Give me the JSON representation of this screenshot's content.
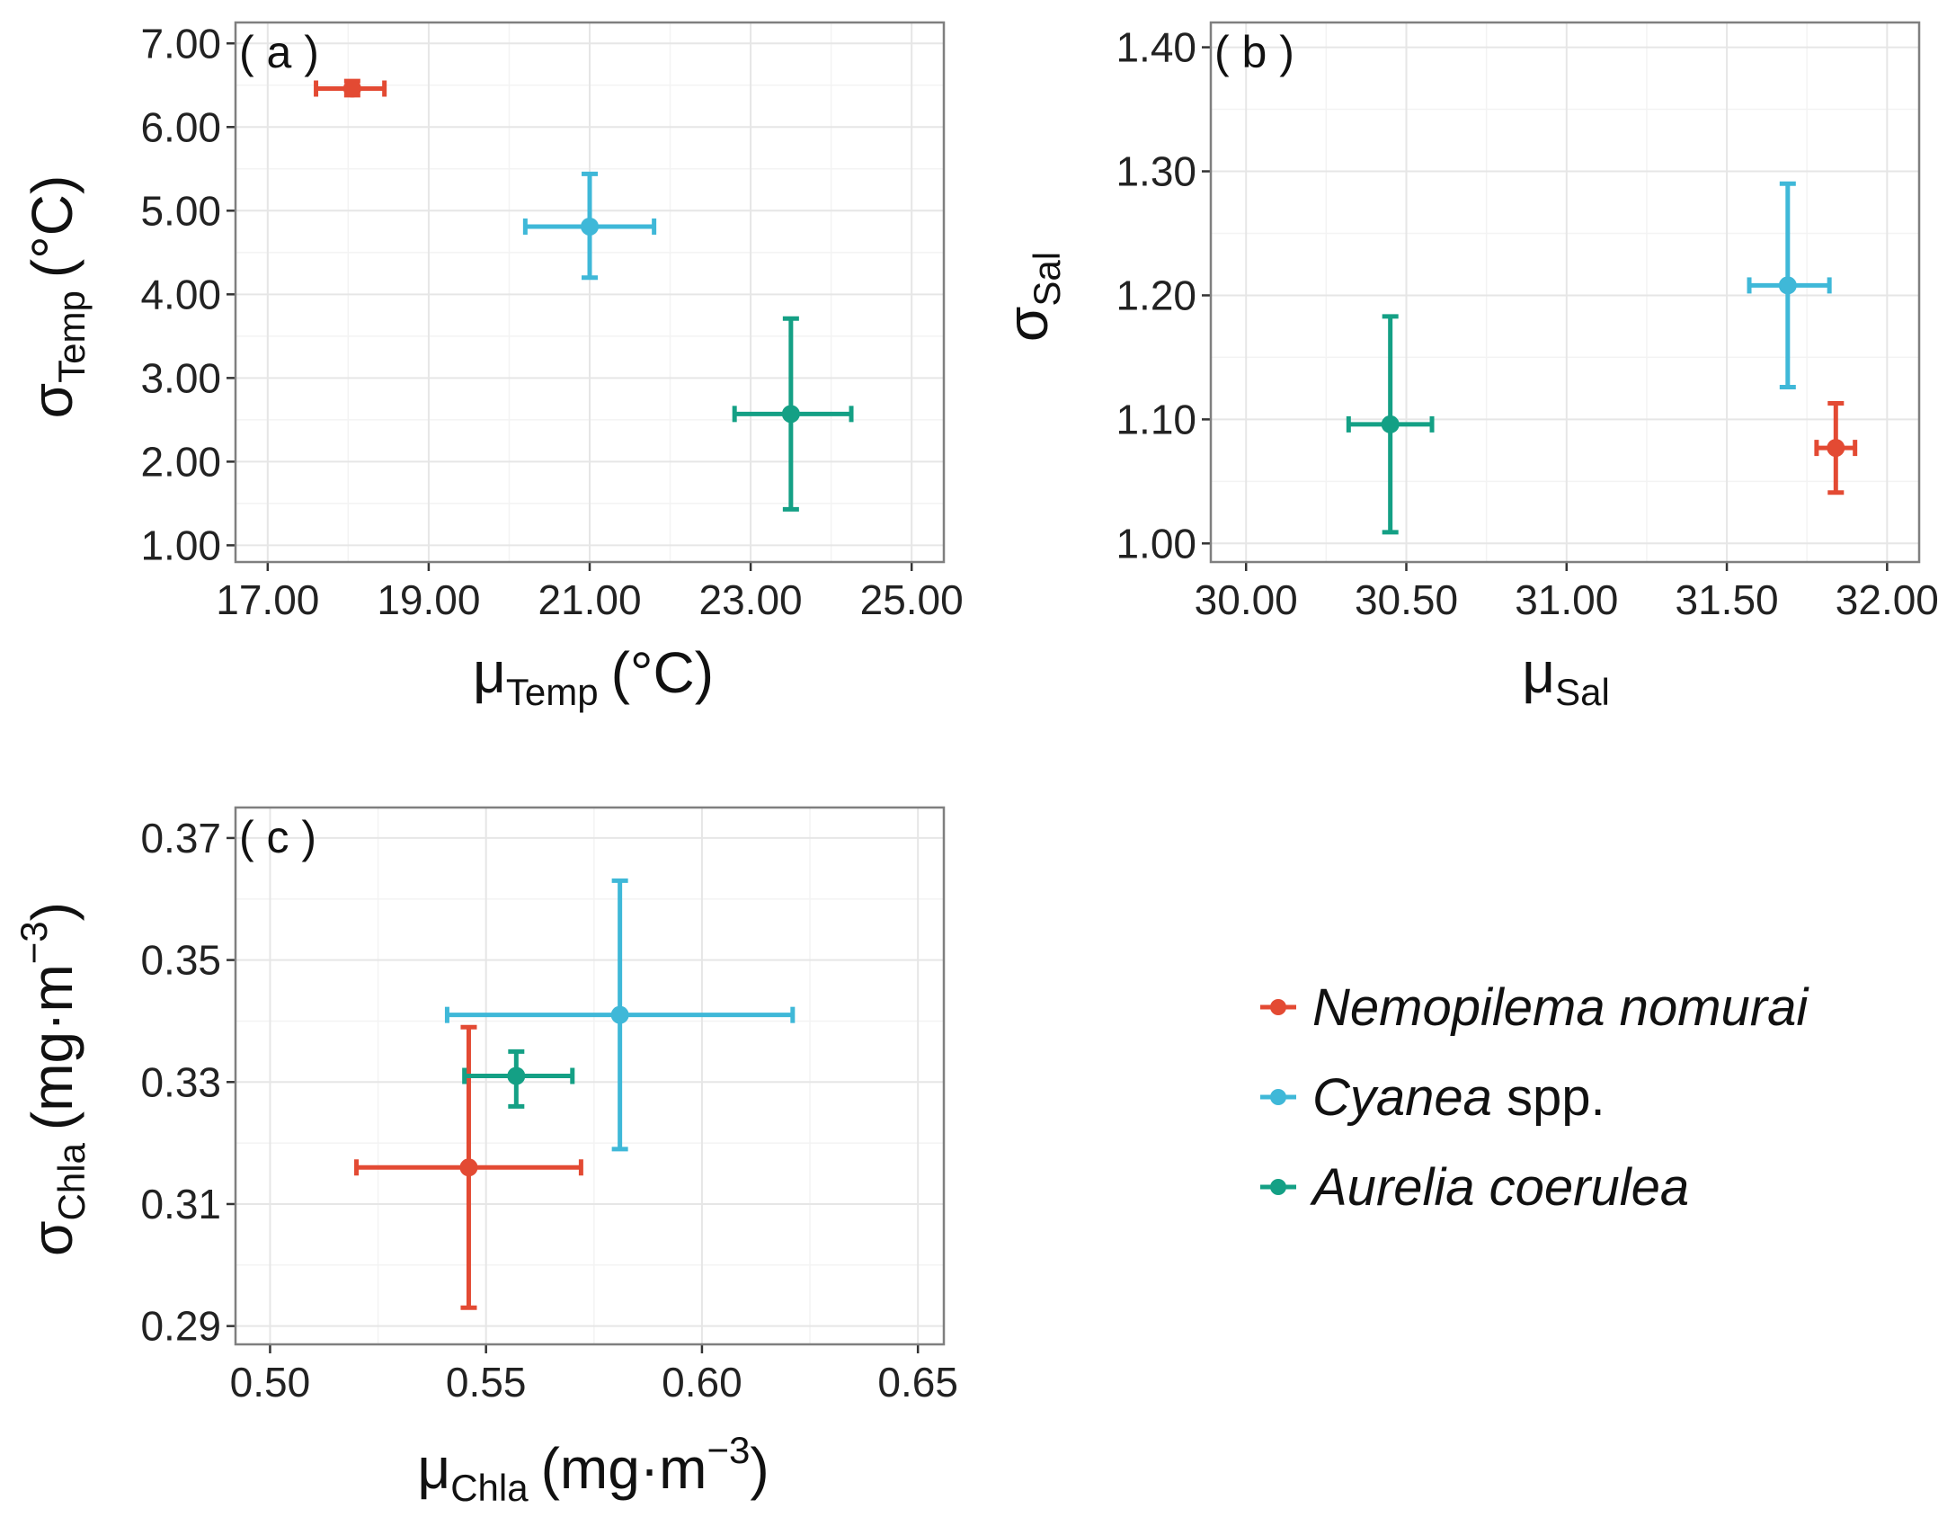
{
  "colors": {
    "nomurai": "#e34a33",
    "cyanea": "#3fb8d8",
    "aurelia": "#14a085"
  },
  "legend": {
    "items": [
      {
        "series": "nomurai",
        "label_parts": [
          {
            "text": "Nemopilema nomurai",
            "italic": true
          }
        ]
      },
      {
        "series": "cyanea",
        "label_parts": [
          {
            "text": "Cyanea",
            "italic": true
          },
          {
            "text": " spp.",
            "italic": false
          }
        ]
      },
      {
        "series": "aurelia",
        "label_parts": [
          {
            "text": "Aurelia coerulea",
            "italic": true
          }
        ]
      }
    ]
  },
  "chart_data": [
    {
      "id": "a",
      "panel_label": "( a )",
      "type": "scatter",
      "xlabel": {
        "symbol": "μ",
        "sub": "Temp",
        "unit": "(°C)",
        "sup": ""
      },
      "ylabel": {
        "symbol": "σ",
        "sub": "Temp",
        "unit": "(°C)",
        "sup": ""
      },
      "xlim": [
        16.6,
        25.4
      ],
      "ylim": [
        0.8,
        7.25
      ],
      "xticks": [
        17,
        19,
        21,
        23,
        25
      ],
      "yticks": [
        1,
        2,
        3,
        4,
        5,
        6,
        7
      ],
      "tick_decimals": 2,
      "points": [
        {
          "series": "nomurai",
          "x": 18.05,
          "y": 6.46,
          "xerr": [
            17.6,
            18.45
          ],
          "yerr": [
            6.38,
            6.55
          ]
        },
        {
          "series": "cyanea",
          "x": 21.0,
          "y": 4.81,
          "xerr": [
            20.2,
            21.8
          ],
          "yerr": [
            4.2,
            5.44
          ]
        },
        {
          "series": "aurelia",
          "x": 23.5,
          "y": 2.57,
          "xerr": [
            22.8,
            24.25
          ],
          "yerr": [
            1.43,
            3.71
          ]
        }
      ]
    },
    {
      "id": "b",
      "panel_label": "( b )",
      "type": "scatter",
      "xlabel": {
        "symbol": "μ",
        "sub": "Sal",
        "unit": "",
        "sup": ""
      },
      "ylabel": {
        "symbol": "σ",
        "sub": "Sal",
        "unit": "",
        "sup": ""
      },
      "xlim": [
        29.89,
        32.1
      ],
      "ylim": [
        0.985,
        1.42
      ],
      "xticks": [
        30,
        30.5,
        31,
        31.5,
        32
      ],
      "yticks": [
        1.0,
        1.1,
        1.2,
        1.3,
        1.4
      ],
      "tick_decimals": 2,
      "points": [
        {
          "series": "nomurai",
          "x": 31.84,
          "y": 1.077,
          "xerr": [
            31.78,
            31.9
          ],
          "yerr": [
            1.041,
            1.113
          ]
        },
        {
          "series": "cyanea",
          "x": 31.69,
          "y": 1.208,
          "xerr": [
            31.57,
            31.82
          ],
          "yerr": [
            1.126,
            1.29
          ]
        },
        {
          "series": "aurelia",
          "x": 30.45,
          "y": 1.096,
          "xerr": [
            30.32,
            30.58
          ],
          "yerr": [
            1.009,
            1.183
          ]
        }
      ]
    },
    {
      "id": "c",
      "panel_label": "( c )",
      "type": "scatter",
      "xlabel": {
        "symbol": "μ",
        "sub": "Chla",
        "unit": "(mg·m",
        "sup": "−3",
        "close": ")"
      },
      "ylabel": {
        "symbol": "σ",
        "sub": "Chla",
        "unit": "(mg·m",
        "sup": "−3",
        "close": ")"
      },
      "xlim": [
        0.492,
        0.656
      ],
      "ylim": [
        0.287,
        0.375
      ],
      "xticks": [
        0.5,
        0.55,
        0.6,
        0.65
      ],
      "yticks": [
        0.29,
        0.31,
        0.33,
        0.35,
        0.37
      ],
      "tick_decimals": 2,
      "points": [
        {
          "series": "nomurai",
          "x": 0.546,
          "y": 0.316,
          "xerr": [
            0.52,
            0.572
          ],
          "yerr": [
            0.293,
            0.339
          ]
        },
        {
          "series": "cyanea",
          "x": 0.581,
          "y": 0.341,
          "xerr": [
            0.541,
            0.621
          ],
          "yerr": [
            0.319,
            0.363
          ]
        },
        {
          "series": "aurelia",
          "x": 0.557,
          "y": 0.331,
          "xerr": [
            0.545,
            0.57
          ],
          "yerr": [
            0.326,
            0.335
          ]
        }
      ]
    }
  ]
}
